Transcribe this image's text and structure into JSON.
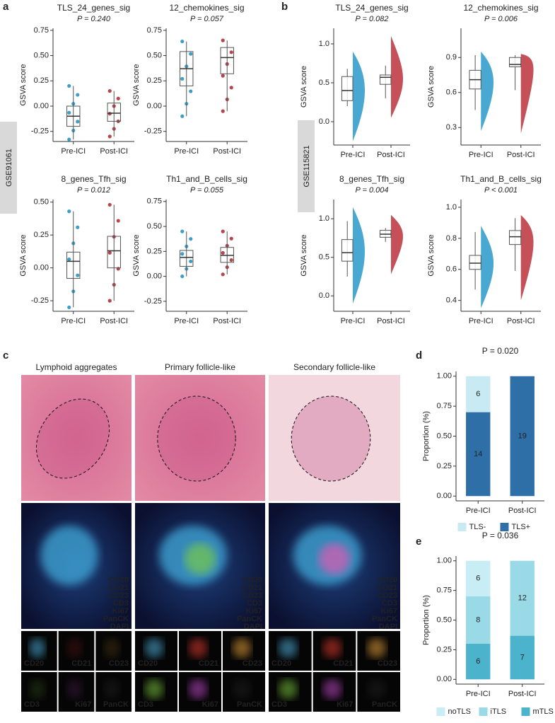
{
  "panels": {
    "a": "a",
    "b": "b",
    "c": "c",
    "d": "d",
    "e": "e"
  },
  "datasets": [
    "GSE91061",
    "GSE115821"
  ],
  "chart_data": [
    {
      "type": "box",
      "title": "TLS_24_genes_sig",
      "subtitle": "P = 0.240",
      "ylabel": "GSVA score",
      "categories": [
        "Pre-ICI",
        "Post-ICI"
      ],
      "series": [
        {
          "color": "#3d9fc6",
          "stats": [
            -0.33,
            -0.2,
            -0.1,
            0.0,
            0.2
          ]
        },
        {
          "color": "#b5474c",
          "stats": [
            -0.3,
            -0.15,
            -0.07,
            0.03,
            0.15
          ]
        }
      ],
      "ylim": [
        -0.35,
        0.77
      ],
      "yticks": [
        {
          "value": -0.25,
          "label": "-0.25"
        },
        {
          "value": 0,
          "label": "0.00"
        },
        0.25,
        {
          "value": 0.5,
          "label": "0.50"
        },
        0.75
      ]
    },
    {
      "type": "box",
      "title": "12_chemokines_sig",
      "subtitle": "P = 0.057",
      "ylabel": "GSVA score",
      "categories": [
        "Pre-ICI",
        "Post-ICI"
      ],
      "series": [
        {
          "color": "#3d9fc6",
          "stats": [
            -0.1,
            0.2,
            0.37,
            0.54,
            0.64
          ]
        },
        {
          "color": "#b5474c",
          "stats": [
            -0.05,
            0.32,
            0.48,
            0.58,
            0.65
          ]
        }
      ],
      "ylim": [
        -0.35,
        0.77
      ],
      "yticks": [
        {
          "value": -0.25,
          "label": "-0.25"
        },
        {
          "value": 0,
          "label": "0.00"
        },
        0.25,
        {
          "value": 0.5,
          "label": "0.50"
        },
        0.75
      ]
    },
    {
      "type": "box",
      "title": "8_genes_Tfh_sig",
      "subtitle": "P = 0.012",
      "ylabel": "GSVA score",
      "categories": [
        "Pre-ICI",
        "Post-ICI"
      ],
      "series": [
        {
          "color": "#3d9fc6",
          "stats": [
            -0.3,
            -0.08,
            0.05,
            0.12,
            0.43
          ]
        },
        {
          "color": "#b5474c",
          "stats": [
            -0.25,
            0.0,
            0.13,
            0.24,
            0.48
          ]
        }
      ],
      "ylim": [
        -0.33,
        0.52
      ],
      "yticks": [
        {
          "value": -0.25,
          "label": "-0.25"
        },
        {
          "value": 0,
          "label": "0.00"
        },
        0.25,
        {
          "value": 0.5,
          "label": "0.50"
        }
      ]
    },
    {
      "type": "box",
      "title": "Th1_and_B_cells_sig",
      "subtitle": "P = 0.055",
      "ylabel": "GSVA score",
      "categories": [
        "Pre-ICI",
        "Post-ICI"
      ],
      "series": [
        {
          "color": "#3d9fc6",
          "stats": [
            0.0,
            0.1,
            0.19,
            0.26,
            0.45
          ]
        },
        {
          "color": "#b5474c",
          "stats": [
            0.02,
            0.14,
            0.21,
            0.29,
            0.45
          ]
        }
      ],
      "ylim": [
        -0.35,
        0.77
      ],
      "yticks": [
        {
          "value": -0.25,
          "label": "-0.25"
        },
        {
          "value": 0,
          "label": "0.00"
        },
        0.25,
        {
          "value": 0.5,
          "label": "0.50"
        },
        0.75
      ]
    },
    {
      "type": "violin",
      "title": "TLS_24_genes_sig",
      "subtitle": "P = 0.082",
      "ylabel": "GSVA score",
      "categories": [
        "Pre-ICI",
        "Post-ICI"
      ],
      "series": [
        {
          "color": "#3fa3cf",
          "stats": [
            0.2,
            0.27,
            0.4,
            0.58,
            0.68
          ],
          "violin": [
            -0.25,
            0.9
          ]
        },
        {
          "color": "#c2474f",
          "stats": [
            0.3,
            0.48,
            0.57,
            0.6,
            0.72
          ],
          "violin": [
            0.05,
            1.1
          ]
        }
      ],
      "ylim": [
        -0.3,
        1.2
      ],
      "yticks": [
        {
          "value": 0,
          "label": "0.0"
        },
        0.5,
        {
          "value": 1,
          "label": "1.0"
        }
      ]
    },
    {
      "type": "violin",
      "title": "12_chemokines_sig",
      "subtitle": "P = 0.006",
      "ylabel": "GSVA score",
      "categories": [
        "Pre-ICI",
        "Post-ICI"
      ],
      "series": [
        {
          "color": "#3fa3cf",
          "stats": [
            0.45,
            0.63,
            0.71,
            0.79,
            0.92
          ],
          "violin": [
            0.27,
            0.95
          ]
        },
        {
          "color": "#c2474f",
          "stats": [
            0.62,
            0.82,
            0.84,
            0.9,
            0.92
          ],
          "violin": [
            0.25,
            0.93
          ]
        }
      ],
      "ylim": [
        0.15,
        1.15
      ],
      "yticks": [
        0.3,
        0.6,
        0.9
      ]
    },
    {
      "type": "violin",
      "title": "8_genes_Tfh_sig",
      "subtitle": "P = 0.004",
      "ylabel": "GSVA score",
      "categories": [
        "Pre-ICI",
        "Post-ICI"
      ],
      "series": [
        {
          "color": "#3fa3cf",
          "stats": [
            0.25,
            0.45,
            0.56,
            0.73,
            0.97
          ],
          "violin": [
            -0.1,
            1.15
          ]
        },
        {
          "color": "#c2474f",
          "stats": [
            0.7,
            0.76,
            0.8,
            0.85,
            0.88
          ],
          "violin": [
            0.28,
            1.05
          ]
        }
      ],
      "ylim": [
        -0.2,
        1.25
      ],
      "yticks": [
        {
          "value": 0,
          "label": "0.0"
        },
        0.5,
        {
          "value": 1,
          "label": "1.0"
        }
      ]
    },
    {
      "type": "violin",
      "title": "Th1_and_B_cells_sig",
      "subtitle": "P < 0.001",
      "ylabel": "GSVA score",
      "categories": [
        "Pre-ICI",
        "Post-ICI"
      ],
      "series": [
        {
          "color": "#3fa3cf",
          "stats": [
            0.47,
            0.6,
            0.64,
            0.69,
            0.84
          ],
          "violin": [
            0.35,
            0.88
          ]
        },
        {
          "color": "#c2474f",
          "stats": [
            0.59,
            0.76,
            0.81,
            0.85,
            0.93
          ],
          "violin": [
            0.4,
            0.95
          ]
        }
      ],
      "ylim": [
        0.33,
        1.05
      ],
      "yticks": [
        0.4,
        0.6,
        0.8,
        {
          "value": 1,
          "label": "1.0"
        }
      ]
    },
    {
      "type": "stacked_bar",
      "title": "P = 0.020",
      "ylabel": "Proportion (%)",
      "categories": [
        "Pre-ICI",
        "Post-ICI"
      ],
      "series": [
        {
          "name": "TLS-",
          "color": "#c8ebf3",
          "values": [
            0.3,
            0
          ],
          "counts": [
            6,
            null
          ]
        },
        {
          "name": "TLS+",
          "color": "#2e6fa7",
          "values": [
            0.7,
            1
          ],
          "counts": [
            14,
            19
          ]
        }
      ],
      "ylim": [
        -0.04,
        1.04
      ],
      "yticks": [
        {
          "value": 0,
          "label": "0.00"
        },
        0.25,
        {
          "value": 0.5,
          "label": "0.50"
        },
        0.75,
        {
          "value": 1,
          "label": "1.00"
        }
      ]
    },
    {
      "type": "stacked_bar",
      "title": "P = 0.036",
      "ylabel": "Proportion (%)",
      "categories": [
        "Pre-ICI",
        "Post-ICI"
      ],
      "series": [
        {
          "name": "noTLS",
          "color": "#c9edf5",
          "values": [
            0.3,
            0
          ],
          "counts": [
            6,
            null
          ]
        },
        {
          "name": "iTLS",
          "color": "#9ad9e6",
          "values": [
            0.4,
            0.632
          ],
          "counts": [
            8,
            12
          ]
        },
        {
          "name": "mTLS",
          "color": "#4cb3cc",
          "values": [
            0.3,
            0.368
          ],
          "counts": [
            6,
            7
          ]
        }
      ],
      "ylim": [
        -0.04,
        1.04
      ],
      "yticks": [
        {
          "value": 0,
          "label": "0.00"
        },
        0.25,
        {
          "value": 0.5,
          "label": "0.50"
        },
        0.75,
        {
          "value": 1,
          "label": "1.00"
        }
      ]
    }
  ],
  "panel_c": {
    "columns": [
      "Lymphoid aggregates",
      "Primary follicle-like",
      "Secondary follicle-like"
    ],
    "markers": [
      {
        "name": "CD20",
        "color": "#4fb3e0"
      },
      {
        "name": "CD21",
        "color": "#e03a2e"
      },
      {
        "name": "CD23",
        "color": "#e8a23a"
      },
      {
        "name": "CD3",
        "color": "#7cc63c"
      },
      {
        "name": "Ki67",
        "color": "#c04ac9"
      },
      {
        "name": "PanCK",
        "color": "#ffffff"
      },
      {
        "name": "DAPI",
        "color": "#3b4fcf"
      }
    ]
  }
}
